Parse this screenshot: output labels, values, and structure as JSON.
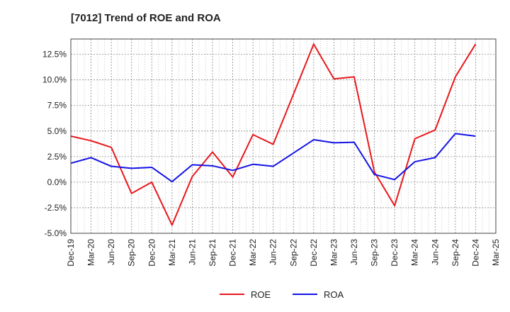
{
  "chart_data": {
    "type": "line",
    "title": "[7012]  Trend of ROE and ROA",
    "xlabel": "",
    "ylabel": "",
    "categories": [
      "Dec-19",
      "Mar-20",
      "Jun-20",
      "Sep-20",
      "Dec-20",
      "Mar-21",
      "Jun-21",
      "Sep-21",
      "Dec-21",
      "Mar-22",
      "Jun-22",
      "Sep-22",
      "Dec-22",
      "Mar-23",
      "Jun-23",
      "Sep-23",
      "Dec-23",
      "Mar-24",
      "Jun-24",
      "Sep-24",
      "Dec-24",
      "Mar-25"
    ],
    "y_ticks": [
      "12.5%",
      "10.0%",
      "7.5%",
      "5.0%",
      "2.5%",
      "0.0%",
      "-2.5%",
      "-5.0%"
    ],
    "ylim": [
      -5.0,
      14.0
    ],
    "grid": true,
    "legend_position": "bottom",
    "series": [
      {
        "name": "ROE",
        "color": "#e8191d",
        "values": [
          4.5,
          4.05,
          3.4,
          -1.1,
          0.0,
          -4.2,
          0.55,
          2.95,
          0.5,
          4.65,
          3.7,
          8.6,
          13.5,
          10.1,
          10.3,
          1.0,
          -2.3,
          4.25,
          5.1,
          10.3,
          13.5,
          null
        ]
      },
      {
        "name": "ROA",
        "color": "#1414e6",
        "values": [
          1.85,
          2.4,
          1.55,
          1.35,
          1.45,
          0.05,
          1.7,
          1.6,
          1.15,
          1.75,
          1.55,
          2.85,
          4.15,
          3.85,
          3.9,
          0.75,
          0.25,
          2.0,
          2.4,
          4.75,
          4.5,
          null
        ]
      }
    ]
  }
}
